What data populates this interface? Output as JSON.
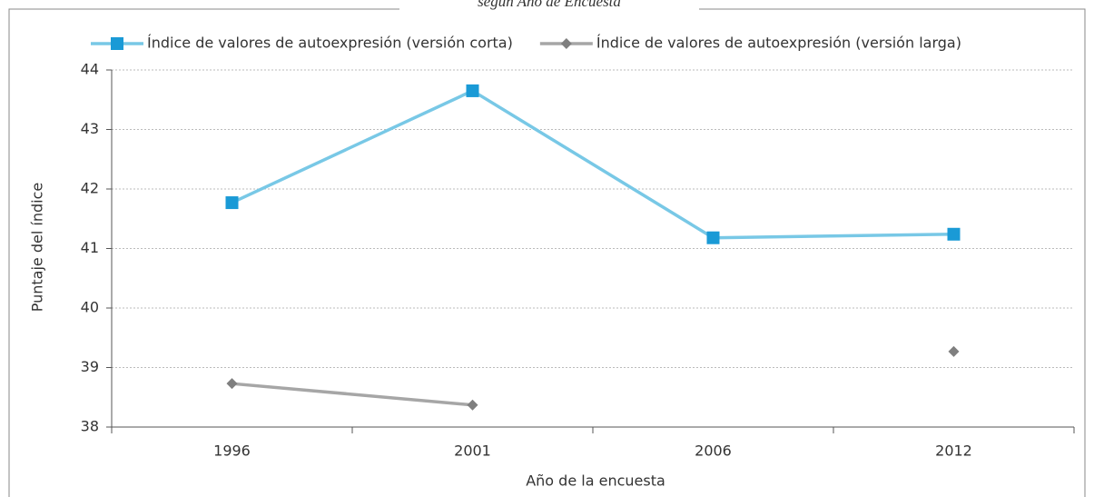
{
  "chart_data": {
    "type": "line",
    "title": "según Año de Encuesta",
    "x_label": "Año de la encuesta",
    "y_label": "Puntaje del índice",
    "categories": [
      "1996",
      "2001",
      "2006",
      "2012"
    ],
    "series": [
      {
        "name": "Índice de valores de autoexpresión (versión corta)",
        "color": "#78c8e6",
        "marker_color": "#1a9ad6",
        "marker": "square",
        "values": [
          41.77,
          43.65,
          41.18,
          41.24
        ]
      },
      {
        "name": "Índice de valores de autoexpresión (versión larga)",
        "color": "#a6a6a6",
        "marker_color": "#7f7f7f",
        "marker": "diamond",
        "values": [
          38.73,
          38.37,
          null,
          39.27
        ]
      }
    ],
    "ylim": [
      38,
      44
    ],
    "yticks": [
      38,
      39,
      40,
      41,
      42,
      43,
      44
    ],
    "grid": true,
    "legend": "top"
  }
}
